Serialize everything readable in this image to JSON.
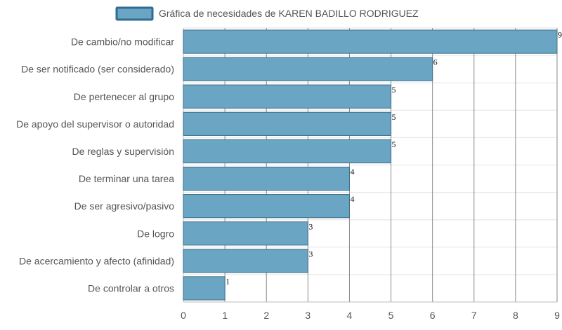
{
  "chart_data": {
    "type": "bar",
    "orientation": "horizontal",
    "legend": {
      "label": "Gráfica de necesidades de KAREN BADILLO RODRIGUEZ",
      "position": "top"
    },
    "categories": [
      "De cambio/no modificar",
      "De ser notificado (ser considerado)",
      "De pertenecer al grupo",
      "De apoyo del supervisor o autoridad",
      "De reglas y supervisión",
      "De terminar una tarea",
      "De ser agresivo/pasivo",
      "De logro",
      "De acercamiento y afecto (afinidad)",
      "De controlar a otros"
    ],
    "series": [
      {
        "name": "Gráfica de necesidades de KAREN BADILLO RODRIGUEZ",
        "values": [
          9,
          6,
          5,
          5,
          5,
          4,
          4,
          3,
          3,
          1
        ]
      }
    ],
    "xlim": [
      0,
      9
    ],
    "xticks": [
      0,
      1,
      2,
      3,
      4,
      5,
      6,
      7,
      8,
      9
    ],
    "grid": true,
    "colors": {
      "bar_fill": "#6aa5c4",
      "bar_stroke": "#3c6e8a",
      "grid": "#e3e3e3",
      "vgrid": "#8a8a8a",
      "axis": "#bbbbbb",
      "legend_border": "#2f6c92"
    }
  }
}
